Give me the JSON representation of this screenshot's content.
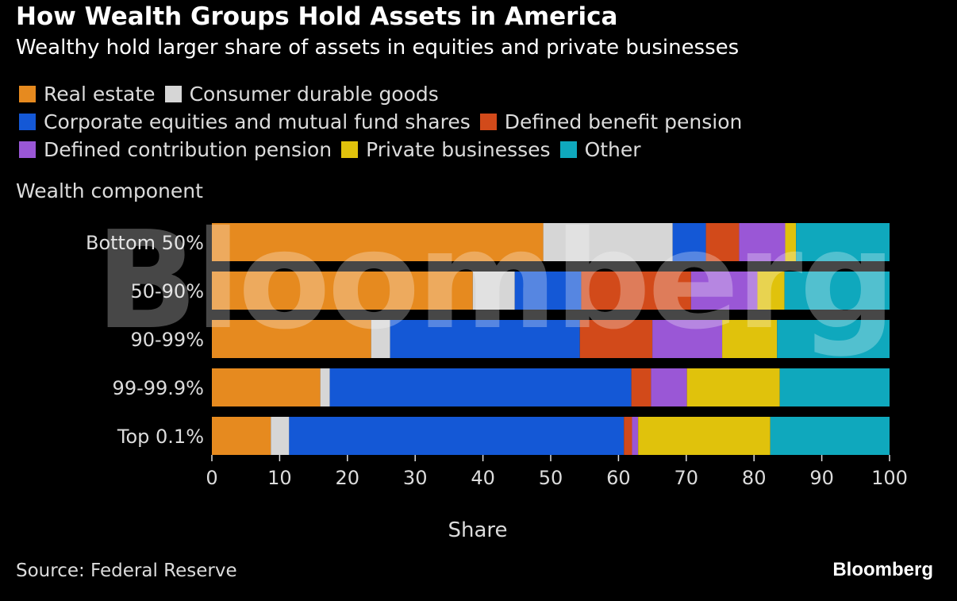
{
  "title": "How Wealth Groups Hold Assets in America",
  "subtitle": "Wealthy hold larger share of assets in equities and private businesses",
  "source": "Source: Federal Reserve",
  "brand": "Bloomberg",
  "watermark": "Bloomberg",
  "legend_rows": [
    [
      {
        "label": "Real estate",
        "color": "#e68a1f"
      },
      {
        "label": "Consumer durable goods",
        "color": "#d6d6d6"
      }
    ],
    [
      {
        "label": "Corporate equities and mutual fund shares",
        "color": "#1458d6"
      },
      {
        "label": "Defined benefit pension",
        "color": "#d24a1a"
      }
    ],
    [
      {
        "label": "Defined contribution pension",
        "color": "#9a57d6"
      },
      {
        "label": "Private businesses",
        "color": "#e0c20c"
      },
      {
        "label": "Other",
        "color": "#0fa8bd"
      }
    ]
  ],
  "chart_data": {
    "type": "bar",
    "orientation": "horizontal",
    "stacked": true,
    "y_axis_title": "Wealth component",
    "xlabel": "Share",
    "xlim": [
      0,
      100
    ],
    "xticks": [
      0,
      10,
      20,
      30,
      40,
      50,
      60,
      70,
      80,
      90,
      100
    ],
    "categories": [
      "Bottom 50%",
      "50-90%",
      "90-99%",
      "99-99.9%",
      "Top 0.1%"
    ],
    "series": [
      {
        "name": "Real estate",
        "color": "#e68a1f",
        "values": [
          48.9,
          38.5,
          23.5,
          16.0,
          8.7
        ]
      },
      {
        "name": "Consumer durable goods",
        "color": "#d6d6d6",
        "values": [
          19.1,
          6.2,
          2.8,
          1.4,
          2.7
        ]
      },
      {
        "name": "Corporate equities and mutual fund shares",
        "color": "#1458d6",
        "values": [
          4.9,
          9.8,
          28.0,
          44.5,
          49.4
        ]
      },
      {
        "name": "Defined benefit pension",
        "color": "#d24a1a",
        "values": [
          4.9,
          16.2,
          10.7,
          2.9,
          1.2
        ]
      },
      {
        "name": "Defined contribution pension",
        "color": "#9a57d6",
        "values": [
          6.8,
          9.8,
          10.3,
          5.3,
          0.9
        ]
      },
      {
        "name": "Private businesses",
        "color": "#e0c20c",
        "values": [
          1.6,
          4.0,
          8.1,
          13.7,
          19.5
        ]
      },
      {
        "name": "Other",
        "color": "#0fa8bd",
        "values": [
          13.8,
          15.5,
          16.6,
          16.2,
          17.6
        ]
      }
    ]
  }
}
